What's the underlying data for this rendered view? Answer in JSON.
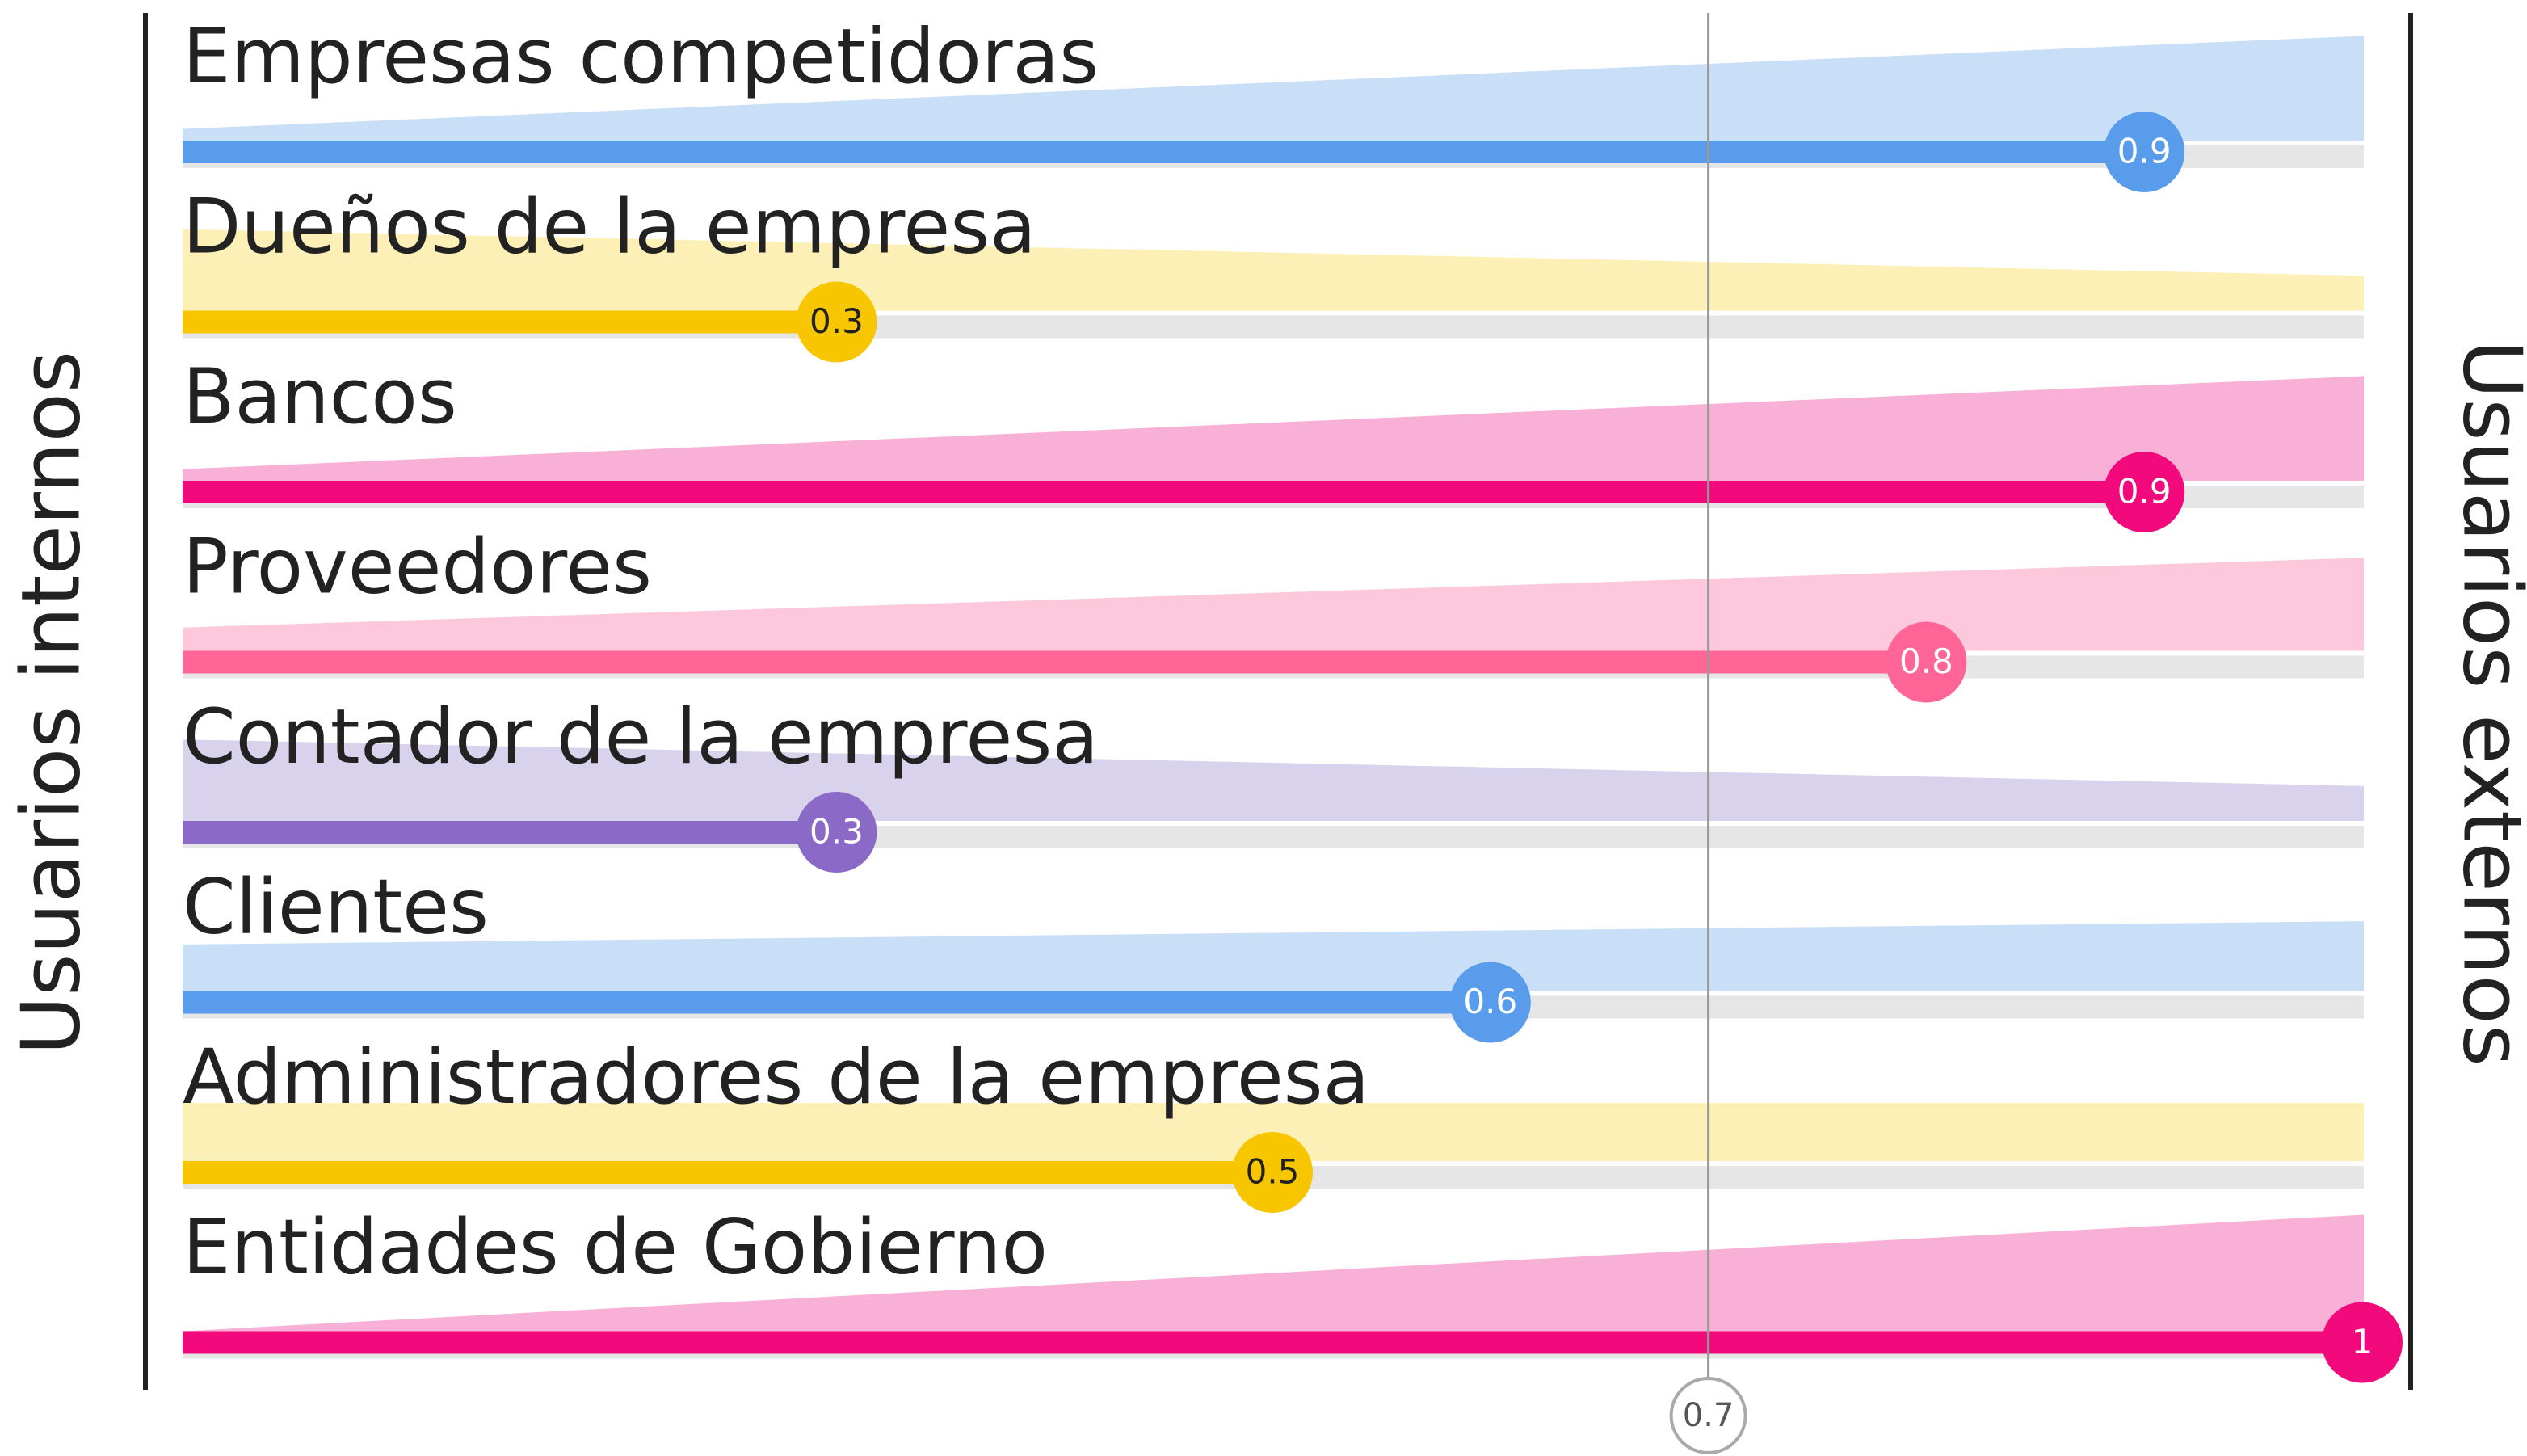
{
  "chart_data": {
    "type": "bar",
    "left_label": "Usuarios internos",
    "right_label": "Usuarios externos",
    "categories": [
      "Empresas competidoras",
      "Dueños de la empresa",
      "Bancos",
      "Proveedores",
      "Contador de la empresa",
      "Clientes",
      "Administradores de la empresa",
      "Entidades de Gobierno"
    ],
    "values": [
      0.9,
      0.3,
      0.9,
      0.8,
      0.3,
      0.6,
      0.5,
      1
    ],
    "colors": [
      "#5a9cec",
      "#f7c600",
      "#f2097b",
      "#ff6597",
      "#8a6ac6",
      "#5a9cec",
      "#f7c600",
      "#f2097b"
    ],
    "band_colors": [
      "#c9dff8",
      "#fdf0b6",
      "#f9b0d6",
      "#fdc8dc",
      "#d9d2ec",
      "#c9dff8",
      "#fdf0b6",
      "#f9b0d6"
    ],
    "xlim": [
      0,
      1
    ],
    "reference_line": 0.7
  }
}
